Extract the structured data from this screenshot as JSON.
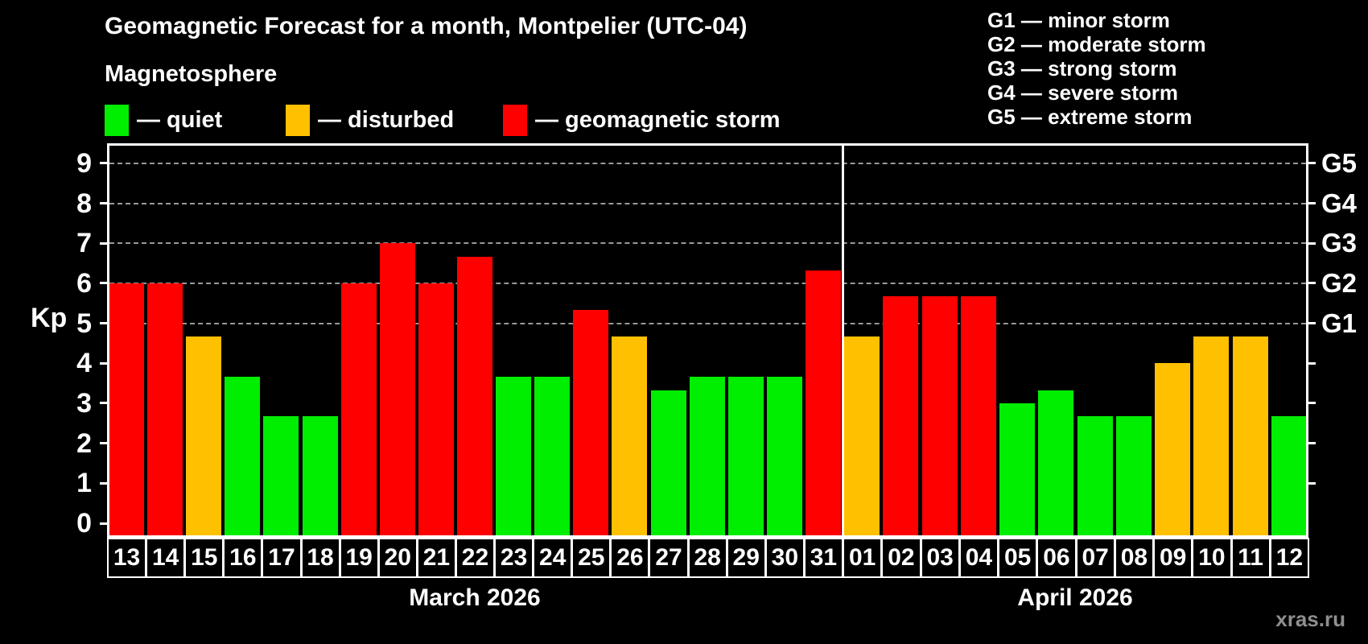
{
  "header": {
    "title": "Geomagnetic Forecast for a month, Montpelier (UTC-04)",
    "subtitle": "Magnetosphere"
  },
  "legend": {
    "items": [
      {
        "key": "quiet",
        "label": "— quiet",
        "color": "#00ee00"
      },
      {
        "key": "disturbed",
        "label": "— disturbed",
        "color": "#ffc000"
      },
      {
        "key": "storm",
        "label": "— geomagnetic storm",
        "color": "#ff0000"
      }
    ]
  },
  "g_legend": {
    "lines": [
      "G1 — minor storm",
      "G2 — moderate storm",
      "G3 — strong storm",
      "G4 — severe storm",
      "G5 — extreme storm"
    ]
  },
  "watermark": "xras.ru",
  "chart_data": {
    "type": "bar",
    "title": "Geomagnetic Forecast for a month, Montpelier (UTC-04)",
    "subtitle": "Magnetosphere",
    "xlabel": "",
    "ylabel": "Kp",
    "ylim": [
      0,
      9.5
    ],
    "grid": "dashed horizontal at Kp 5-9",
    "yticks_left": [
      0,
      1,
      2,
      3,
      4,
      5,
      6,
      7,
      8,
      9
    ],
    "gridlines_kp": [
      5,
      6,
      7,
      8,
      9
    ],
    "right_axis": [
      {
        "kp": 5,
        "label": "G1"
      },
      {
        "kp": 6,
        "label": "G2"
      },
      {
        "kp": 7,
        "label": "G3"
      },
      {
        "kp": 8,
        "label": "G4"
      },
      {
        "kp": 9,
        "label": "G5"
      }
    ],
    "colors": {
      "quiet": "#00ee00",
      "disturbed": "#ffc000",
      "storm": "#ff0000"
    },
    "months": [
      {
        "label": "March 2026",
        "days": [
          {
            "date": "13",
            "kp": 6.0,
            "level": "storm"
          },
          {
            "date": "14",
            "kp": 6.0,
            "level": "storm"
          },
          {
            "date": "15",
            "kp": 4.67,
            "level": "disturbed"
          },
          {
            "date": "16",
            "kp": 3.67,
            "level": "quiet"
          },
          {
            "date": "17",
            "kp": 2.67,
            "level": "quiet"
          },
          {
            "date": "18",
            "kp": 2.67,
            "level": "quiet"
          },
          {
            "date": "19",
            "kp": 6.0,
            "level": "storm"
          },
          {
            "date": "20",
            "kp": 7.0,
            "level": "storm"
          },
          {
            "date": "21",
            "kp": 6.0,
            "level": "storm"
          },
          {
            "date": "22",
            "kp": 6.67,
            "level": "storm"
          },
          {
            "date": "23",
            "kp": 3.67,
            "level": "quiet"
          },
          {
            "date": "24",
            "kp": 3.67,
            "level": "quiet"
          },
          {
            "date": "25",
            "kp": 5.33,
            "level": "storm"
          },
          {
            "date": "26",
            "kp": 4.67,
            "level": "disturbed"
          },
          {
            "date": "27",
            "kp": 3.33,
            "level": "quiet"
          },
          {
            "date": "28",
            "kp": 3.67,
            "level": "quiet"
          },
          {
            "date": "29",
            "kp": 3.67,
            "level": "quiet"
          },
          {
            "date": "30",
            "kp": 3.67,
            "level": "quiet"
          },
          {
            "date": "31",
            "kp": 6.33,
            "level": "storm"
          }
        ]
      },
      {
        "label": "April 2026",
        "days": [
          {
            "date": "01",
            "kp": 4.67,
            "level": "disturbed"
          },
          {
            "date": "02",
            "kp": 5.67,
            "level": "storm"
          },
          {
            "date": "03",
            "kp": 5.67,
            "level": "storm"
          },
          {
            "date": "04",
            "kp": 5.67,
            "level": "storm"
          },
          {
            "date": "05",
            "kp": 3.0,
            "level": "quiet"
          },
          {
            "date": "06",
            "kp": 3.33,
            "level": "quiet"
          },
          {
            "date": "07",
            "kp": 2.67,
            "level": "quiet"
          },
          {
            "date": "08",
            "kp": 2.67,
            "level": "quiet"
          },
          {
            "date": "09",
            "kp": 4.0,
            "level": "disturbed"
          },
          {
            "date": "10",
            "kp": 4.67,
            "level": "disturbed"
          },
          {
            "date": "11",
            "kp": 4.67,
            "level": "disturbed"
          },
          {
            "date": "12",
            "kp": 2.67,
            "level": "quiet"
          }
        ]
      }
    ],
    "legend_entries": [
      "quiet",
      "disturbed",
      "geomagnetic storm"
    ],
    "legend_position": "top-left",
    "right_legend": [
      "G1 — minor storm",
      "G2 — moderate storm",
      "G3 — strong storm",
      "G4 — severe storm",
      "G5 — extreme storm"
    ],
    "watermark": "xras.ru"
  }
}
